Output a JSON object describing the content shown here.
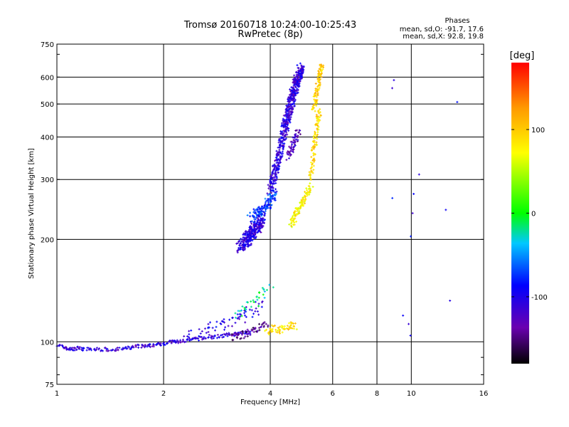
{
  "chart_data": {
    "type": "scatter",
    "title": "Tromsø 20160718 10:24:00-10:25:43",
    "subtitle": "RwPretec (8p)",
    "xlabel": "Frequency [MHz]",
    "ylabel": "Stationary phase Virtual Height [km]",
    "x_scale": "log",
    "y_scale": "log",
    "xlim": [
      1,
      16
    ],
    "ylim": [
      75,
      750
    ],
    "x_ticks": [
      1,
      2,
      4,
      6,
      8,
      10,
      16
    ],
    "x_tick_labels": [
      "1",
      "2",
      "4",
      "6",
      "8",
      "10",
      "16"
    ],
    "y_ticks": [
      75,
      100,
      200,
      300,
      400,
      500,
      600,
      750
    ],
    "y_tick_labels": [
      "75",
      "100",
      "200",
      "300",
      "400",
      "500",
      "600",
      "750"
    ],
    "grid": true,
    "stats": {
      "heading": "Phases",
      "o_line": "mean, sd,O: -91.7, 17.6",
      "x_line": "mean, sd,X:  92.8, 19.8"
    },
    "colorbar": {
      "label": "[deg]",
      "range": [
        -180,
        180
      ],
      "ticks": [
        100,
        0,
        -100
      ],
      "tick_labels": [
        "100",
        "0",
        "-100"
      ]
    },
    "traces": [
      {
        "x": [
          1.0,
          1.05,
          1.1,
          1.15,
          1.2,
          1.3,
          1.4,
          1.5,
          1.6,
          1.7,
          1.8,
          1.9,
          2.0,
          2.1,
          2.2,
          2.35,
          2.5,
          2.7,
          2.9,
          3.1,
          3.3,
          3.5
        ],
        "y": [
          98,
          96,
          95,
          96,
          95,
          95,
          95,
          95,
          96,
          97,
          97,
          98,
          99,
          100,
          100,
          101,
          102,
          103,
          104,
          105,
          106,
          107
        ],
        "phase": -110,
        "spread": 0.015,
        "n": 12
      },
      {
        "x": [
          2.3,
          2.6,
          2.9,
          3.2,
          3.5,
          3.8
        ],
        "y": [
          104,
          108,
          112,
          116,
          122,
          128
        ],
        "phase": -100,
        "spread": 0.05,
        "n": 14
      },
      {
        "x": [
          3.1,
          3.3,
          3.5,
          3.7,
          3.9
        ],
        "y": [
          103,
          104,
          107,
          110,
          113
        ],
        "phase": -145,
        "spread": 0.03,
        "n": 14
      },
      {
        "x": [
          3.2,
          3.4,
          3.6,
          3.8,
          4.0
        ],
        "y": [
          120,
          125,
          130,
          138,
          145
        ],
        "phase": -20,
        "spread": 0.04,
        "n": 8
      },
      {
        "x": [
          3.9,
          4.1,
          4.3,
          4.5,
          4.7
        ],
        "y": [
          105,
          110,
          108,
          112,
          110
        ],
        "phase": 90,
        "spread": 0.03,
        "n": 14
      },
      {
        "x": [
          3.3,
          3.4,
          3.5,
          3.6,
          3.7,
          3.8
        ],
        "y": [
          190,
          195,
          205,
          212,
          220,
          235
        ],
        "phase": -105,
        "spread": 0.05,
        "n": 60
      },
      {
        "x": [
          3.5,
          3.7,
          3.9,
          4.0,
          4.1
        ],
        "y": [
          230,
          240,
          250,
          260,
          275
        ],
        "phase": -75,
        "spread": 0.04,
        "n": 30
      },
      {
        "x": [
          4.0,
          4.1,
          4.2,
          4.3,
          4.4
        ],
        "y": [
          280,
          310,
          340,
          380,
          430
        ],
        "phase": -105,
        "spread": 0.035,
        "n": 50
      },
      {
        "x": [
          4.4,
          4.5,
          4.6,
          4.7,
          4.8,
          4.9
        ],
        "y": [
          420,
          470,
          520,
          560,
          600,
          640
        ],
        "phase": -110,
        "spread": 0.04,
        "n": 70
      },
      {
        "x": [
          4.5,
          4.6,
          4.7,
          4.8
        ],
        "y": [
          350,
          370,
          390,
          420
        ],
        "phase": -125,
        "spread": 0.03,
        "n": 20
      },
      {
        "x": [
          4.55,
          4.7,
          4.85,
          5.0,
          5.2
        ],
        "y": [
          220,
          235,
          250,
          265,
          290
        ],
        "phase": 80,
        "spread": 0.03,
        "n": 25
      },
      {
        "x": [
          5.2,
          5.3,
          5.4,
          5.5
        ],
        "y": [
          300,
          360,
          420,
          480
        ],
        "phase": 90,
        "spread": 0.025,
        "n": 30
      },
      {
        "x": [
          5.3,
          5.4,
          5.5,
          5.6
        ],
        "y": [
          480,
          540,
          600,
          650
        ],
        "phase": 95,
        "spread": 0.025,
        "n": 30
      },
      {
        "x": [
          8.8,
          8.85,
          8.9,
          9.5,
          9.8,
          9.9,
          10.0,
          10.05,
          10.2,
          10.5,
          12.5,
          12.8,
          13.5
        ],
        "y": [
          265,
          560,
          590,
          120,
          113,
          105,
          205,
          240,
          270,
          310,
          245,
          132,
          505
        ],
        "phase": -100,
        "spread": 0.01,
        "n": 1
      }
    ]
  }
}
